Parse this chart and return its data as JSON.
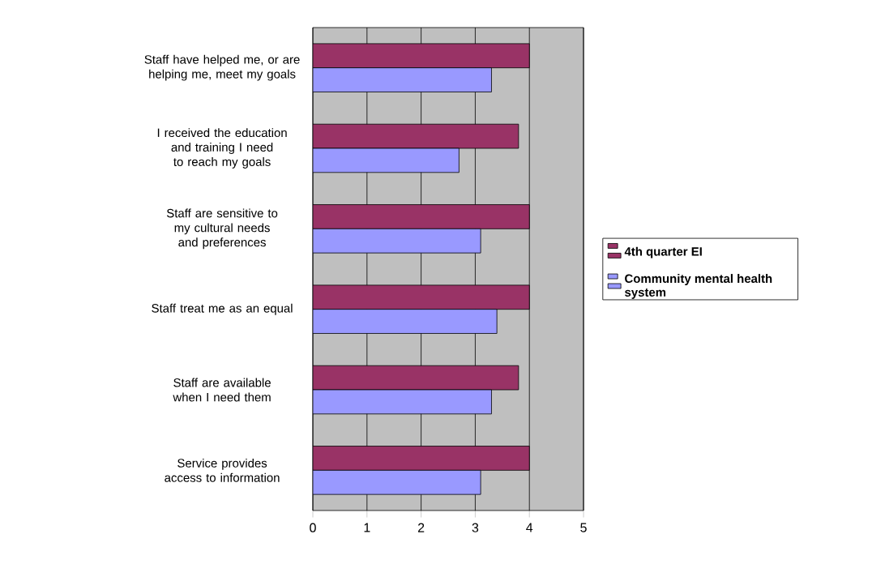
{
  "chart_data": {
    "type": "bar",
    "orientation": "horizontal",
    "categories": [
      "Staff have helped me, or are helping me, meet my goals",
      "I received the education and training I need to reach my goals",
      "Staff are sensitive to my cultural needs and preferences",
      "Staff treat me as an equal",
      "Staff are available when I need them",
      "Service provides access to information"
    ],
    "series": [
      {
        "name": "4th quarter EI",
        "color": "#993366",
        "values": [
          4,
          3.8,
          4,
          4,
          3.8,
          4
        ]
      },
      {
        "name": "Community mental health system",
        "color": "#9999ff",
        "values": [
          3.3,
          2.7,
          3.1,
          3.4,
          3.3,
          3.1
        ]
      }
    ],
    "xlim": [
      0,
      5
    ],
    "xticks": [
      0,
      1,
      2,
      3,
      4,
      5
    ],
    "grid": "x",
    "legend": "right"
  }
}
